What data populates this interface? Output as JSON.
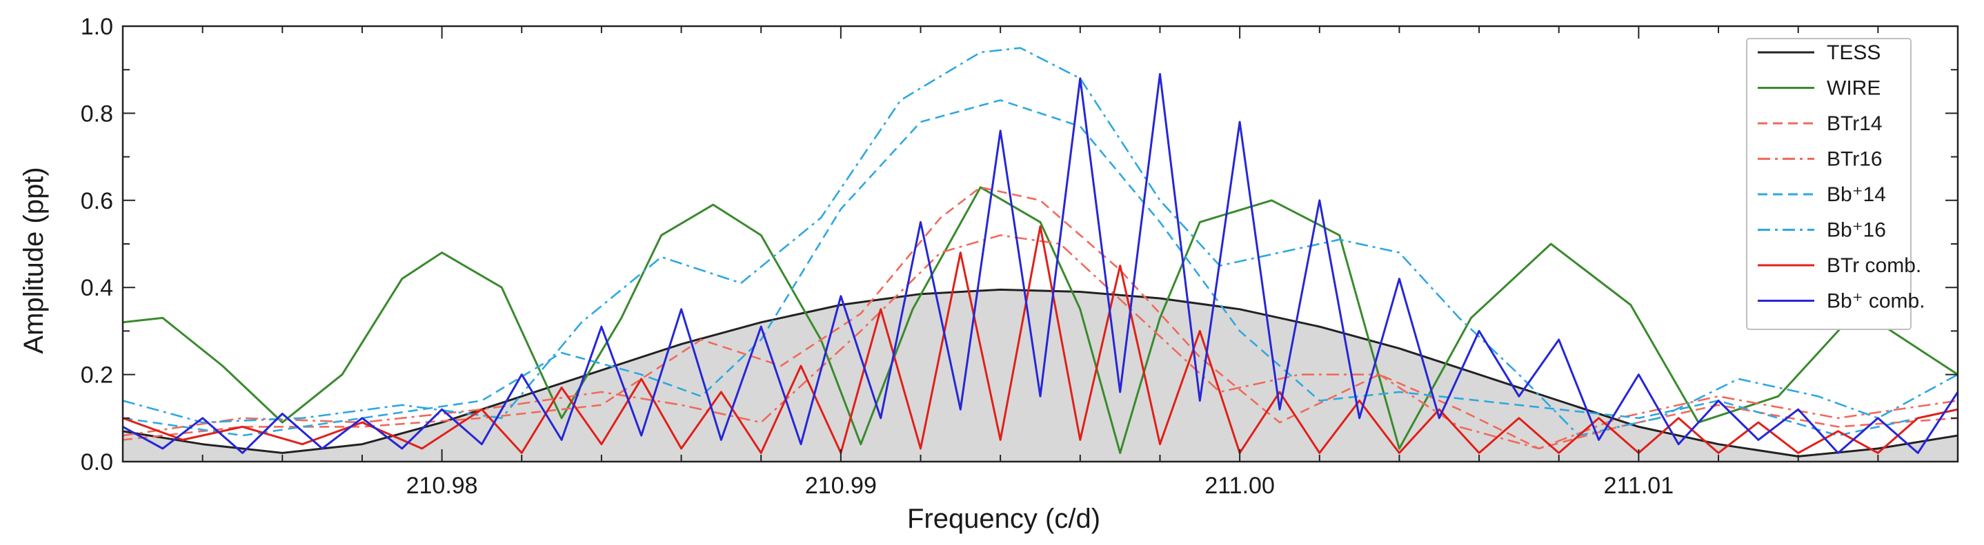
{
  "chart_data": {
    "type": "line",
    "xlabel": "Frequency  (c/d)",
    "ylabel": "Amplitude (ppt)",
    "xlim": [
      210.972,
      211.018
    ],
    "ylim": [
      0.0,
      1.0
    ],
    "x_ticks": [
      210.98,
      210.99,
      211.0,
      211.01
    ],
    "x_tick_labels": [
      "210.98",
      "210.99",
      "211.00",
      "211.01"
    ],
    "y_ticks": [
      0.0,
      0.2,
      0.4,
      0.6,
      0.8,
      1.0
    ],
    "y_tick_labels": [
      "0.0",
      "0.2",
      "0.4",
      "0.6",
      "0.8",
      "1.0"
    ],
    "legend_position": "top-right",
    "series": [
      {
        "name": "TESS",
        "color": "#222222",
        "style": "solid",
        "filled": true,
        "fill_color": "#d8d8d8",
        "x": [
          210.972,
          210.974,
          210.976,
          210.978,
          210.98,
          210.982,
          210.984,
          210.986,
          210.988,
          210.99,
          210.992,
          210.994,
          210.996,
          210.998,
          211.0,
          211.002,
          211.004,
          211.006,
          211.008,
          211.01,
          211.012,
          211.014,
          211.016,
          211.018
        ],
        "y": [
          0.07,
          0.04,
          0.02,
          0.04,
          0.09,
          0.15,
          0.21,
          0.27,
          0.32,
          0.36,
          0.385,
          0.395,
          0.39,
          0.375,
          0.35,
          0.31,
          0.26,
          0.2,
          0.14,
          0.08,
          0.04,
          0.012,
          0.03,
          0.06
        ]
      },
      {
        "name": "WIRE",
        "color": "#3a8a2e",
        "style": "solid",
        "filled": false,
        "x": [
          210.972,
          210.973,
          210.9745,
          210.976,
          210.9775,
          210.979,
          210.98,
          210.9815,
          210.983,
          210.9845,
          210.9855,
          210.9868,
          210.988,
          210.9895,
          210.9905,
          210.9918,
          210.9935,
          210.995,
          210.996,
          210.997,
          210.998,
          210.999,
          211.0008,
          211.0025,
          211.004,
          211.0058,
          211.0078,
          211.0098,
          211.0115,
          211.0135,
          211.0155,
          211.018
        ],
        "y": [
          0.32,
          0.33,
          0.22,
          0.09,
          0.2,
          0.42,
          0.48,
          0.4,
          0.1,
          0.33,
          0.52,
          0.59,
          0.52,
          0.28,
          0.04,
          0.35,
          0.63,
          0.55,
          0.35,
          0.02,
          0.33,
          0.55,
          0.6,
          0.52,
          0.03,
          0.33,
          0.5,
          0.36,
          0.09,
          0.15,
          0.35,
          0.2
        ]
      },
      {
        "name": "BTr14",
        "color": "#f06a5a",
        "style": "dashed",
        "filled": false,
        "x": [
          210.972,
          210.975,
          210.978,
          210.981,
          210.984,
          210.9865,
          210.9885,
          210.9905,
          210.9925,
          210.9935,
          210.995,
          210.997,
          210.999,
          211.001,
          211.0035,
          211.0055,
          211.0075,
          211.0095,
          211.012,
          211.015,
          211.018
        ],
        "y": [
          0.05,
          0.08,
          0.08,
          0.1,
          0.13,
          0.28,
          0.22,
          0.34,
          0.56,
          0.63,
          0.6,
          0.44,
          0.24,
          0.09,
          0.2,
          0.12,
          0.03,
          0.08,
          0.13,
          0.08,
          0.1
        ]
      },
      {
        "name": "BTr16",
        "color": "#f06a5a",
        "style": "dashdot",
        "filled": false,
        "x": [
          210.972,
          210.975,
          210.978,
          210.981,
          210.984,
          210.986,
          210.988,
          210.9905,
          210.9925,
          210.994,
          210.9955,
          210.9975,
          210.9995,
          211.0015,
          211.0035,
          211.0055,
          211.0075,
          211.0095,
          211.012,
          211.015,
          211.018
        ],
        "y": [
          0.06,
          0.1,
          0.09,
          0.12,
          0.16,
          0.13,
          0.09,
          0.3,
          0.48,
          0.52,
          0.5,
          0.33,
          0.16,
          0.2,
          0.2,
          0.08,
          0.03,
          0.1,
          0.15,
          0.1,
          0.14
        ]
      },
      {
        "name": "Bb⁺14",
        "color": "#2ea8e0",
        "style": "dashed",
        "filled": false,
        "x": [
          210.972,
          210.975,
          210.978,
          210.981,
          210.983,
          210.985,
          210.9865,
          210.988,
          210.99,
          210.992,
          210.994,
          210.996,
          210.998,
          211.0,
          211.002,
          211.004,
          211.006,
          211.008,
          211.01,
          211.012,
          211.015,
          211.018
        ],
        "y": [
          0.1,
          0.06,
          0.1,
          0.14,
          0.25,
          0.2,
          0.15,
          0.28,
          0.58,
          0.78,
          0.83,
          0.77,
          0.55,
          0.3,
          0.14,
          0.16,
          0.14,
          0.12,
          0.1,
          0.14,
          0.06,
          0.12
        ]
      },
      {
        "name": "Bb⁺16",
        "color": "#2ea8e0",
        "style": "dashdot",
        "filled": false,
        "x": [
          210.972,
          210.974,
          210.9765,
          210.979,
          210.9815,
          210.9835,
          210.9855,
          210.9875,
          210.9895,
          210.9915,
          210.9935,
          210.9945,
          210.996,
          210.998,
          210.9995,
          211.001,
          211.0025,
          211.004,
          211.0055,
          211.007,
          211.0085,
          211.0105,
          211.0125,
          211.0145,
          211.016,
          211.018
        ],
        "y": [
          0.14,
          0.09,
          0.1,
          0.13,
          0.1,
          0.32,
          0.47,
          0.41,
          0.56,
          0.83,
          0.94,
          0.95,
          0.88,
          0.6,
          0.45,
          0.48,
          0.51,
          0.48,
          0.33,
          0.2,
          0.06,
          0.1,
          0.19,
          0.15,
          0.1,
          0.2
        ]
      },
      {
        "name": "BTr comb.",
        "color": "#e0201a",
        "style": "solid",
        "filled": false,
        "x": [
          210.972,
          210.9735,
          210.975,
          210.9765,
          210.978,
          210.9795,
          210.981,
          210.982,
          210.983,
          210.984,
          210.985,
          210.986,
          210.987,
          210.988,
          210.989,
          210.99,
          210.991,
          210.992,
          210.993,
          210.994,
          210.995,
          210.996,
          210.997,
          210.998,
          210.999,
          211.0,
          211.001,
          211.002,
          211.003,
          211.004,
          211.005,
          211.006,
          211.007,
          211.008,
          211.009,
          211.01,
          211.011,
          211.012,
          211.013,
          211.014,
          211.015,
          211.016,
          211.017,
          211.018
        ],
        "y": [
          0.1,
          0.05,
          0.08,
          0.04,
          0.09,
          0.03,
          0.12,
          0.02,
          0.17,
          0.04,
          0.19,
          0.03,
          0.16,
          0.02,
          0.22,
          0.02,
          0.35,
          0.03,
          0.48,
          0.05,
          0.54,
          0.05,
          0.45,
          0.04,
          0.3,
          0.02,
          0.16,
          0.02,
          0.14,
          0.02,
          0.12,
          0.02,
          0.1,
          0.02,
          0.1,
          0.02,
          0.1,
          0.02,
          0.09,
          0.02,
          0.07,
          0.02,
          0.1,
          0.12
        ]
      },
      {
        "name": "Bb⁺ comb.",
        "color": "#2626d8",
        "style": "solid",
        "filled": false,
        "x": [
          210.972,
          210.973,
          210.974,
          210.975,
          210.976,
          210.977,
          210.978,
          210.979,
          210.98,
          210.981,
          210.982,
          210.983,
          210.984,
          210.985,
          210.986,
          210.987,
          210.988,
          210.989,
          210.99,
          210.991,
          210.992,
          210.993,
          210.994,
          210.995,
          210.996,
          210.997,
          210.998,
          210.999,
          211.0,
          211.001,
          211.002,
          211.003,
          211.004,
          211.005,
          211.006,
          211.007,
          211.008,
          211.009,
          211.01,
          211.011,
          211.012,
          211.013,
          211.014,
          211.015,
          211.016,
          211.017,
          211.018
        ],
        "y": [
          0.08,
          0.03,
          0.1,
          0.02,
          0.11,
          0.03,
          0.1,
          0.03,
          0.12,
          0.04,
          0.2,
          0.05,
          0.31,
          0.06,
          0.35,
          0.05,
          0.31,
          0.04,
          0.38,
          0.1,
          0.55,
          0.12,
          0.76,
          0.15,
          0.88,
          0.16,
          0.89,
          0.14,
          0.78,
          0.12,
          0.6,
          0.1,
          0.42,
          0.1,
          0.3,
          0.15,
          0.28,
          0.05,
          0.2,
          0.04,
          0.14,
          0.05,
          0.12,
          0.02,
          0.1,
          0.02,
          0.16
        ]
      }
    ]
  }
}
